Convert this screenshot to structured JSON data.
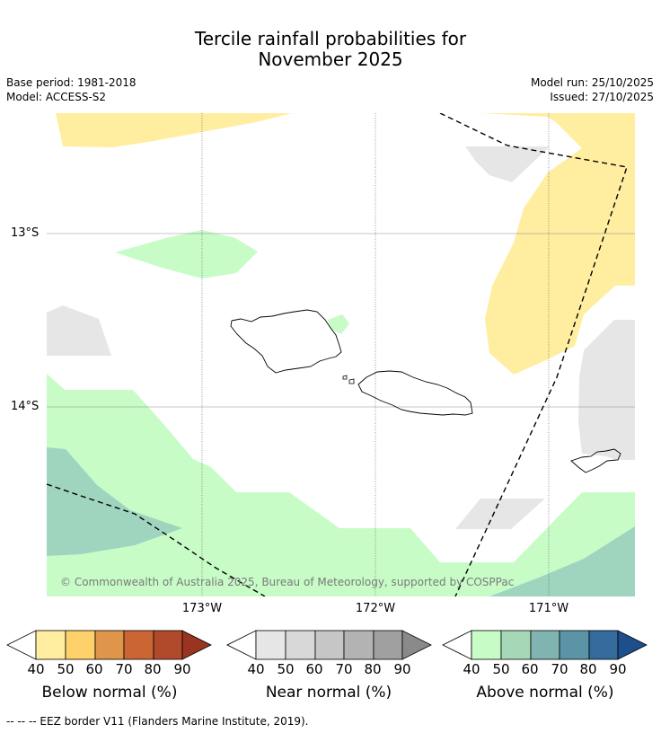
{
  "header": {
    "title_line1": "Tercile rainfall probabilities for",
    "title_line2": "November 2025",
    "base_period": "Base period: 1981-2018",
    "model": "Model: ACCESS-S2",
    "model_run": "Model run: 25/10/2025",
    "issued": "Issued: 27/10/2025"
  },
  "map": {
    "lat_labels": [
      "13°S",
      "14°S"
    ],
    "lon_labels": [
      "173°W",
      "172°W",
      "171°W"
    ],
    "copyright": "© Commonwealth of Australia 2025, Bureau of Meteorology, supported by COSPPac",
    "colors": {
      "below40": "#ffeda0",
      "near40": "#e6e6e6",
      "above40": "#c7fcc7",
      "above60": "#9fd4bf",
      "coast": "#000000",
      "grid": "#888888"
    }
  },
  "legends": [
    {
      "title": "Below normal (%)",
      "ticks": [
        "40",
        "50",
        "60",
        "70",
        "80",
        "90"
      ],
      "colors": [
        "#ffeda0",
        "#fed16a",
        "#e0964a",
        "#cc6534",
        "#b04a2a",
        "#983420"
      ]
    },
    {
      "title": "Near normal (%)",
      "ticks": [
        "40",
        "50",
        "60",
        "70",
        "80",
        "90"
      ],
      "colors": [
        "#e6e6e6",
        "#d8d8d8",
        "#c6c6c6",
        "#b3b3b3",
        "#a0a0a0",
        "#8a8a8a"
      ]
    },
    {
      "title": "Above normal (%)",
      "ticks": [
        "40",
        "50",
        "60",
        "70",
        "80",
        "90"
      ],
      "colors": [
        "#c7fcc7",
        "#a6d8b8",
        "#80b4b0",
        "#5a94a6",
        "#346a9c",
        "#1e4e8c"
      ]
    }
  ],
  "footer": {
    "eez_note": "--  --  -- EEZ border V11 (Flanders Marine Institute, 2019)."
  }
}
